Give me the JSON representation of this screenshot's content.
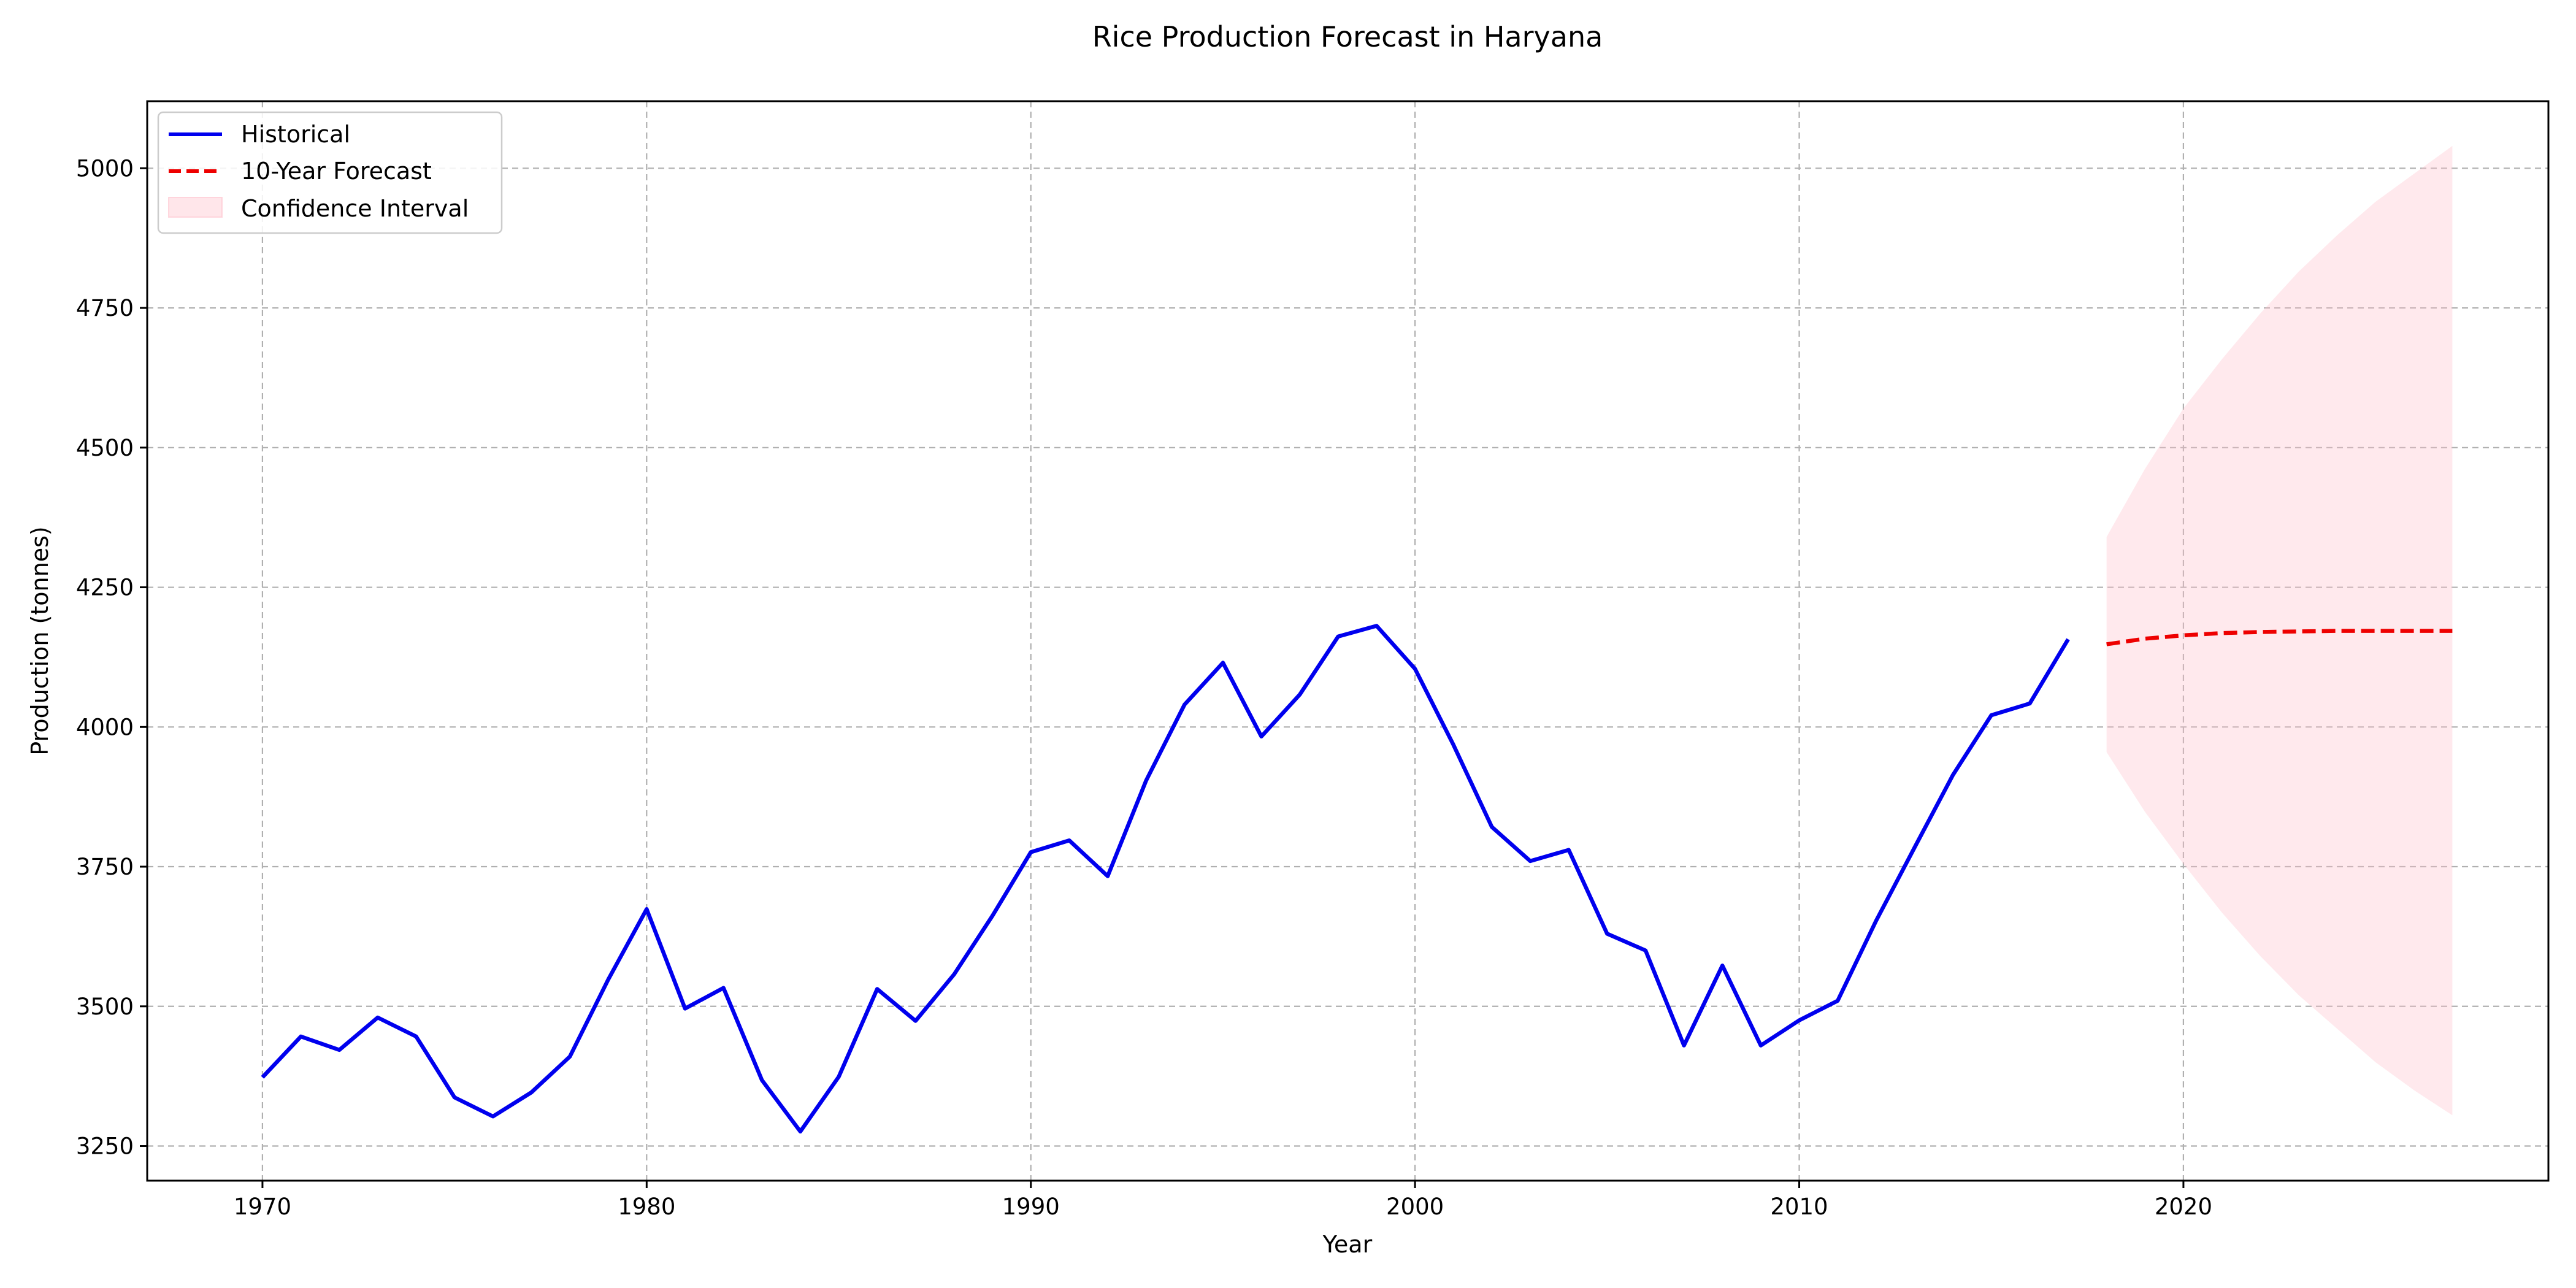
{
  "chart_data": {
    "type": "line",
    "title": "Rice Production Forecast in Haryana",
    "xlabel": "Year",
    "ylabel": "Production (tonnes)",
    "xlim": [
      1967,
      2029.5
    ],
    "ylim": [
      3188,
      5120
    ],
    "xticks": [
      1970,
      1980,
      1990,
      2000,
      2010,
      2020
    ],
    "yticks": [
      3250,
      3500,
      3750,
      4000,
      4250,
      4500,
      4750,
      5000
    ],
    "grid": true,
    "legend_position": "top-left",
    "legend": [
      "Historical",
      "10-Year Forecast",
      "Confidence Interval"
    ],
    "series": [
      {
        "name": "Historical",
        "color": "#0000ee",
        "style": "solid",
        "x": [
          1970,
          1971,
          1972,
          1973,
          1974,
          1975,
          1976,
          1977,
          1978,
          1979,
          1980,
          1981,
          1982,
          1983,
          1984,
          1985,
          1986,
          1987,
          1988,
          1989,
          1990,
          1991,
          1992,
          1993,
          1994,
          1995,
          1996,
          1997,
          1998,
          1999,
          2000,
          2001,
          2002,
          2003,
          2004,
          2005,
          2006,
          2007,
          2008,
          2009,
          2010,
          2011,
          2012,
          2013,
          2014,
          2015,
          2016,
          2017
        ],
        "y": [
          3373,
          3446,
          3422,
          3480,
          3446,
          3337,
          3303,
          3346,
          3410,
          3548,
          3674,
          3496,
          3533,
          3368,
          3276,
          3374,
          3531,
          3474,
          3557,
          3662,
          3776,
          3797,
          3733,
          3904,
          4040,
          4115,
          3983,
          4058,
          4162,
          4181,
          4104,
          3968,
          3821,
          3760,
          3780,
          3630,
          3600,
          3430,
          3573,
          3430,
          3475,
          3510,
          3653,
          3784,
          3914,
          4021,
          4042,
          4157
        ]
      },
      {
        "name": "10-Year Forecast",
        "color": "#ee0000",
        "style": "dashed",
        "x": [
          2018,
          2019,
          2020,
          2021,
          2022,
          2023,
          2024,
          2025,
          2026,
          2027
        ],
        "y": [
          4148,
          4158,
          4164,
          4168,
          4170,
          4171,
          4172,
          4172,
          4172,
          4172
        ]
      }
    ],
    "confidence_interval": {
      "name": "Confidence Interval",
      "color": "#ffc0cb",
      "x": [
        2018,
        2019,
        2020,
        2021,
        2022,
        2023,
        2024,
        2025,
        2026,
        2027
      ],
      "lower": [
        3955,
        3848,
        3755,
        3668,
        3590,
        3520,
        3460,
        3400,
        3350,
        3305
      ],
      "upper": [
        4340,
        4462,
        4570,
        4658,
        4740,
        4815,
        4880,
        4940,
        4990,
        5040
      ]
    }
  }
}
